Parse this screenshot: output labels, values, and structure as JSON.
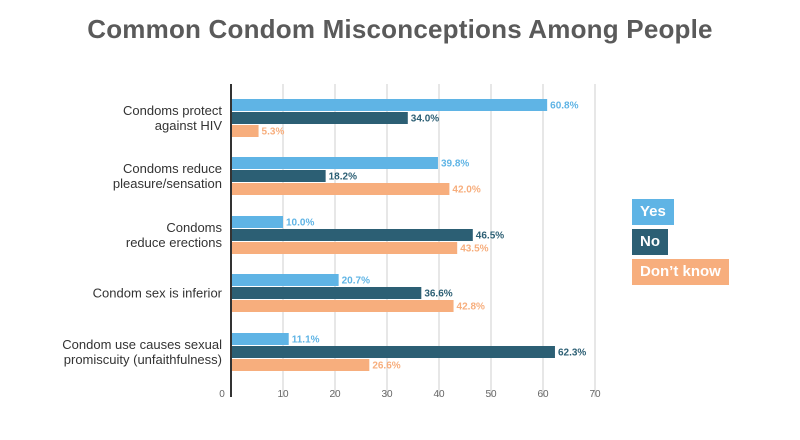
{
  "chart_data": {
    "type": "bar",
    "orientation": "horizontal",
    "title": "Common Condom Misconceptions Among People",
    "categories": [
      [
        "Condoms protect",
        "against HIV"
      ],
      [
        "Condoms reduce",
        "pleasure/sensation"
      ],
      [
        "Condoms",
        "reduce erections"
      ],
      [
        "Condom sex is inferior"
      ],
      [
        "Condom use causes sexual",
        "promiscuity (unfaithfulness)"
      ]
    ],
    "series": [
      {
        "name": "Yes",
        "color": "#5fb4e5",
        "values": [
          60.8,
          39.8,
          10.0,
          20.7,
          11.1
        ],
        "labels": [
          "60.8%",
          "39.8%",
          "10.0%",
          "20.7%",
          "11.1%"
        ]
      },
      {
        "name": "No",
        "color": "#2c5f74",
        "values": [
          34.0,
          18.2,
          46.5,
          36.6,
          62.3
        ],
        "labels": [
          "34.0%",
          "18.2%",
          "46.5%",
          "36.6%",
          "62.3%"
        ]
      },
      {
        "name": "Don’t know",
        "color": "#f7ae7d",
        "values": [
          5.3,
          42.0,
          43.5,
          42.8,
          26.6
        ],
        "labels": [
          "5.3%",
          "42.0%",
          "43.5%",
          "42.8%",
          "26.6%"
        ]
      }
    ],
    "xlim": [
      0,
      70
    ],
    "xticks": [
      0,
      10,
      20,
      30,
      40,
      50,
      60,
      70
    ],
    "grid": true,
    "legend": "right"
  }
}
